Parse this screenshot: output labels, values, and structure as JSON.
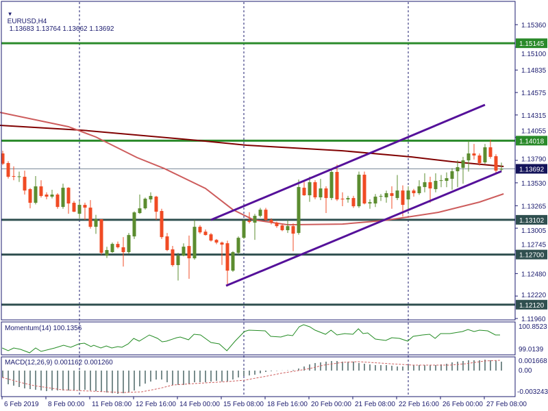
{
  "header": {
    "symbol": "EURUSD,H4",
    "ohlc_text": "1.13683 1.13764 1.13662 1.13692",
    "menu_icon": "triangle-down-icon"
  },
  "momentum": {
    "label": "Momentum(14) 100.1356",
    "axis_top": "100.8523",
    "axis_bottom": "99.0139"
  },
  "macd": {
    "label": "MACD(12,26,9) 0.001162 0.001260",
    "axis_top": "0.001668",
    "axis_zero": "0.00",
    "axis_bottom": "-0.003243"
  },
  "colors": {
    "bull": "#5b8c2f",
    "bear": "#f04b24",
    "resistance": "#2a8a2a",
    "support": "#2f4f4f",
    "channel": "#55119a",
    "ma_slow": "#800000",
    "ma_fast": "#cd5c5c",
    "momentum": "#228b22",
    "macd_hist": "#2f4f4f",
    "macd_signal": "#cd5c5c",
    "axis": "#1a1a6e",
    "price_line": "#7a8a9a"
  },
  "chart_data": {
    "type": "candlestick",
    "title": "EURUSD,H4",
    "y_ticks": [
      "1.15360",
      "1.15100",
      "1.14835",
      "1.14575",
      "1.14315",
      "1.14055",
      "1.13790",
      "1.13530",
      "1.13265",
      "1.13005",
      "1.12745",
      "1.12480",
      "1.12220",
      "1.11960"
    ],
    "ylim": [
      1.1196,
      1.1536
    ],
    "time_labels": [
      {
        "index": 0,
        "text": "6 Feb 2019"
      },
      {
        "index": 8,
        "text": "8 Feb 00:00"
      },
      {
        "index": 16,
        "text": "11 Feb 08:00"
      },
      {
        "index": 24,
        "text": "12 Feb 16:00"
      },
      {
        "index": 32,
        "text": "14 Feb 00:00"
      },
      {
        "index": 40,
        "text": "15 Feb 08:00"
      },
      {
        "index": 48,
        "text": "18 Feb 16:00"
      },
      {
        "index": 56,
        "text": "20 Feb 00:00"
      },
      {
        "index": 64,
        "text": "21 Feb 08:00"
      },
      {
        "index": 72,
        "text": "22 Feb 16:00"
      },
      {
        "index": 80,
        "text": "26 Feb 00:00"
      },
      {
        "index": 88,
        "text": "27 Feb 08:00"
      }
    ],
    "separators": [
      14,
      44,
      74
    ],
    "levels": [
      {
        "price": 1.15145,
        "text": "1.15145",
        "kind": "resistance"
      },
      {
        "price": 1.14018,
        "text": "1.14018",
        "kind": "resistance"
      },
      {
        "price": 1.13102,
        "text": "1.13102",
        "kind": "support"
      },
      {
        "price": 1.127,
        "text": "1.12700",
        "kind": "support"
      },
      {
        "price": 1.1212,
        "text": "1.12120",
        "kind": "support"
      }
    ],
    "current_price": {
      "price": 1.13692,
      "text": "1.13692"
    },
    "channel": [
      {
        "from": [
          38,
          1.13101
        ],
        "to": [
          88,
          1.14433
        ]
      },
      {
        "from": [
          40.75,
          1.12339
        ],
        "to": [
          91,
          1.13664
        ]
      }
    ],
    "ma_slow": [
      [
        -0.5,
        1.14195
      ],
      [
        14.5,
        1.14139
      ],
      [
        35.75,
        1.1402
      ],
      [
        44.5,
        1.13965
      ],
      [
        62,
        1.13901
      ],
      [
        74.5,
        1.1383
      ],
      [
        82,
        1.13775
      ],
      [
        91.4,
        1.13719
      ]
    ],
    "ma_fast": [
      [
        -0.5,
        1.14345
      ],
      [
        12,
        1.14179
      ],
      [
        17,
        1.1406
      ],
      [
        24.5,
        1.13822
      ],
      [
        29.5,
        1.13695
      ],
      [
        37,
        1.13465
      ],
      [
        42,
        1.13219
      ],
      [
        45.8,
        1.13101
      ],
      [
        52,
        1.13045
      ],
      [
        62,
        1.13053
      ],
      [
        69.5,
        1.13093
      ],
      [
        74.5,
        1.1314
      ],
      [
        79.5,
        1.13188
      ],
      [
        87,
        1.13307
      ],
      [
        91.4,
        1.13402
      ]
    ],
    "ohlc": [
      [
        1.1387,
        1.13901,
        1.13735,
        1.13751
      ],
      [
        1.13759,
        1.1378,
        1.1358,
        1.136
      ],
      [
        1.13608,
        1.1372,
        1.1356,
        1.136
      ],
      [
        1.136,
        1.1366,
        1.1354,
        1.13605
      ],
      [
        1.136,
        1.13671,
        1.13394,
        1.13441
      ],
      [
        1.13457,
        1.1347,
        1.13235,
        1.13299
      ],
      [
        1.13299,
        1.13608,
        1.1328,
        1.13489
      ],
      [
        1.13489,
        1.1356,
        1.1336,
        1.13378
      ],
      [
        1.13394,
        1.1342,
        1.1334,
        1.1337
      ],
      [
        1.1337,
        1.1345,
        1.1335,
        1.13394
      ],
      [
        1.13394,
        1.1341,
        1.1323,
        1.13251
      ],
      [
        1.13251,
        1.1352,
        1.1323,
        1.13473
      ],
      [
        1.13473,
        1.1348,
        1.13172,
        1.13291
      ],
      [
        1.13299,
        1.1332,
        1.1319,
        1.13196
      ],
      [
        1.13172,
        1.1332,
        1.13116,
        1.13275
      ],
      [
        1.13275,
        1.133,
        1.131,
        1.13243
      ],
      [
        1.13243,
        1.1333,
        1.13,
        1.13021
      ],
      [
        1.13021,
        1.1316,
        1.1294,
        1.13108
      ],
      [
        1.13108,
        1.1311,
        1.127,
        1.1272
      ],
      [
        1.12688,
        1.1279,
        1.1266,
        1.12752
      ],
      [
        1.12728,
        1.1284,
        1.1272,
        1.12823
      ],
      [
        1.12823,
        1.1285,
        1.1277,
        1.12784
      ],
      [
        1.12784,
        1.12902,
        1.12561,
        1.12728
      ],
      [
        1.12728,
        1.1295,
        1.1271,
        1.12926
      ],
      [
        1.1291,
        1.132,
        1.1288,
        1.13188
      ],
      [
        1.1318,
        1.13394,
        1.1317,
        1.13235
      ],
      [
        1.13235,
        1.1336,
        1.1322,
        1.13346
      ],
      [
        1.13338,
        1.1342,
        1.133,
        1.13378
      ],
      [
        1.1337,
        1.1338,
        1.131,
        1.13196
      ],
      [
        1.13204,
        1.1323,
        1.1288,
        1.12902
      ],
      [
        1.1291,
        1.1295,
        1.1274,
        1.12752
      ],
      [
        1.1276,
        1.128,
        1.1256,
        1.12578
      ],
      [
        1.12578,
        1.1272,
        1.124,
        1.12688
      ],
      [
        1.12688,
        1.1283,
        1.1268,
        1.12791
      ],
      [
        1.12799,
        1.1292,
        1.1242,
        1.12657
      ],
      [
        1.12657,
        1.131,
        1.1264,
        1.13021
      ],
      [
        1.13021,
        1.1304,
        1.1294,
        1.12957
      ],
      [
        1.12965,
        1.1299,
        1.1292,
        1.12926
      ],
      [
        1.12934,
        1.1295,
        1.1285,
        1.12862
      ],
      [
        1.1287,
        1.1288,
        1.1282,
        1.12839
      ],
      [
        1.12839,
        1.1285,
        1.1258,
        1.12815
      ],
      [
        1.12831,
        1.1286,
        1.12331,
        1.12514
      ],
      [
        1.12514,
        1.1274,
        1.125,
        1.12728
      ],
      [
        1.1272,
        1.1291,
        1.127,
        1.12894
      ],
      [
        1.12894,
        1.1311,
        1.1288,
        1.13093
      ],
      [
        1.13093,
        1.1319,
        1.1306,
        1.13077
      ],
      [
        1.13069,
        1.1317,
        1.1287,
        1.13148
      ],
      [
        1.13148,
        1.1324,
        1.1313,
        1.13219
      ],
      [
        1.13219,
        1.1324,
        1.1309,
        1.13101
      ],
      [
        1.13101,
        1.1312,
        1.1305,
        1.13069
      ],
      [
        1.13069,
        1.1308,
        1.1301,
        1.13029
      ],
      [
        1.13037,
        1.1305,
        1.1297,
        1.12982
      ],
      [
        1.12982,
        1.131,
        1.1295,
        1.13029
      ],
      [
        1.13029,
        1.1306,
        1.1274,
        1.12942
      ],
      [
        1.1295,
        1.13568,
        1.1293,
        1.13481
      ],
      [
        1.13473,
        1.1356,
        1.1338,
        1.13386
      ],
      [
        1.13386,
        1.136,
        1.1331,
        1.13537
      ],
      [
        1.13537,
        1.1356,
        1.1334,
        1.13362
      ],
      [
        1.13362,
        1.13576,
        1.1333,
        1.13465
      ],
      [
        1.13465,
        1.1349,
        1.1318,
        1.13354
      ],
      [
        1.13354,
        1.13695,
        1.1333,
        1.13656
      ],
      [
        1.13656,
        1.1374,
        1.1332,
        1.13338
      ],
      [
        1.13346,
        1.1342,
        1.1326,
        1.13338
      ],
      [
        1.13338,
        1.1338,
        1.133,
        1.13354
      ],
      [
        1.13354,
        1.1338,
        1.1324,
        1.13259
      ],
      [
        1.13259,
        1.1366,
        1.1324,
        1.13624
      ],
      [
        1.13624,
        1.1366,
        1.1328,
        1.13291
      ],
      [
        1.13291,
        1.1334,
        1.1323,
        1.13306
      ],
      [
        1.13291,
        1.134,
        1.1325,
        1.1337
      ],
      [
        1.1337,
        1.134,
        1.1332,
        1.13378
      ],
      [
        1.13362,
        1.1344,
        1.133,
        1.1341
      ],
      [
        1.1341,
        1.1349,
        1.1323,
        1.13378
      ],
      [
        1.13354,
        1.1362,
        1.1333,
        1.13441
      ],
      [
        1.13441,
        1.135,
        1.1314,
        1.13275
      ],
      [
        1.13338,
        1.1349,
        1.132,
        1.13441
      ],
      [
        1.13441,
        1.1346,
        1.1337,
        1.1341
      ],
      [
        1.1341,
        1.1356,
        1.1339,
        1.13489
      ],
      [
        1.13481,
        1.1364,
        1.1342,
        1.13537
      ],
      [
        1.13537,
        1.136,
        1.133,
        1.13465
      ],
      [
        1.13457,
        1.1364,
        1.1342,
        1.13553
      ],
      [
        1.13553,
        1.1362,
        1.1348,
        1.1356
      ],
      [
        1.13553,
        1.1365,
        1.1348,
        1.13584
      ],
      [
        1.13576,
        1.137,
        1.1345,
        1.13664
      ],
      [
        1.13664,
        1.1379,
        1.1348,
        1.13711
      ],
      [
        1.13703,
        1.1383,
        1.1352,
        1.1379
      ],
      [
        1.1379,
        1.14018,
        1.1366,
        1.1387
      ],
      [
        1.1387,
        1.1398,
        1.138,
        1.13846
      ],
      [
        1.13846,
        1.1387,
        1.1373,
        1.13759
      ],
      [
        1.13767,
        1.1398,
        1.1375,
        1.13941
      ],
      [
        1.13941,
        1.1403,
        1.1381,
        1.1383
      ],
      [
        1.13838,
        1.1386,
        1.1364,
        1.13671
      ],
      [
        1.13683,
        1.13764,
        1.13662,
        1.13692
      ]
    ],
    "momentum_series": [
      [
        -0.1,
        99.129
      ],
      [
        1,
        98.899
      ],
      [
        2,
        99.129
      ],
      [
        3.25,
        99.014
      ],
      [
        4.9,
        98.727
      ],
      [
        6,
        99.129
      ],
      [
        7,
        98.842
      ],
      [
        9.5,
        99.129
      ],
      [
        11.1,
        99.359
      ],
      [
        12.4,
        99.186
      ],
      [
        13.9,
        99.474
      ],
      [
        14.9,
        99.531
      ],
      [
        16.1,
        99.244
      ],
      [
        16.6,
        99.359
      ],
      [
        17.9,
        99.129
      ],
      [
        18.9,
        99.301
      ],
      [
        19.9,
        99.129
      ],
      [
        21,
        99.244
      ],
      [
        21.75,
        99.186
      ],
      [
        22.9,
        99.474
      ],
      [
        23.9,
        99.933
      ],
      [
        24.9,
        99.703
      ],
      [
        26.75,
        100.22
      ],
      [
        28.25,
        99.933
      ],
      [
        29.1,
        99.646
      ],
      [
        29.9,
        99.703
      ],
      [
        31.75,
        99.991
      ],
      [
        32.4,
        100.048
      ],
      [
        33.9,
        99.818
      ],
      [
        34.9,
        100.278
      ],
      [
        36.1,
        100.22
      ],
      [
        38,
        99.588
      ],
      [
        39.5,
        99.474
      ],
      [
        40.9,
        98.899
      ],
      [
        42.4,
        99.703
      ],
      [
        44.1,
        100.508
      ],
      [
        44.9,
        100.622
      ],
      [
        47.9,
        100.565
      ],
      [
        48.9,
        100.106
      ],
      [
        50.75,
        100.048
      ],
      [
        52,
        100.22
      ],
      [
        52.9,
        100.163
      ],
      [
        54.1,
        100.91
      ],
      [
        54.9,
        101.082
      ],
      [
        56,
        100.91
      ],
      [
        57,
        100.623
      ],
      [
        58.9,
        100.278
      ],
      [
        59.9,
        100.623
      ],
      [
        61,
        100.22
      ],
      [
        62.4,
        100.335
      ],
      [
        63.9,
        100.278
      ],
      [
        64.9,
        100.737
      ],
      [
        65.75,
        100.335
      ],
      [
        66.6,
        100.393
      ],
      [
        68,
        99.876
      ],
      [
        69.9,
        99.761
      ],
      [
        71,
        99.991
      ],
      [
        72.4,
        99.933
      ],
      [
        73.9,
        99.703
      ],
      [
        74.9,
        100.106
      ],
      [
        76.6,
        100.22
      ],
      [
        77.9,
        100.278
      ],
      [
        78.9,
        99.933
      ],
      [
        79.9,
        100.335
      ],
      [
        81.6,
        100.335
      ],
      [
        83.9,
        100.508
      ],
      [
        84.9,
        100.68
      ],
      [
        86,
        100.508
      ],
      [
        87,
        100.622
      ],
      [
        88.5,
        100.565
      ],
      [
        89.9,
        100.22
      ],
      [
        90.75,
        100.22
      ]
    ],
    "macd_histogram": [
      -0.00115,
      -0.0023,
      -0.00253,
      -0.00276,
      -0.00299,
      -0.00311,
      -0.00322,
      -0.00334,
      -0.00345,
      -0.00334,
      -0.00334,
      -0.00334,
      -0.00334,
      -0.00334,
      -0.00334,
      -0.00322,
      -0.00334,
      -0.00345,
      -0.00357,
      -0.00368,
      -0.0038,
      -0.00391,
      -0.0038,
      -0.00368,
      -0.00334,
      -0.00265,
      -0.00219,
      -0.00184,
      -0.0015,
      -0.0015,
      -0.00196,
      -0.00242,
      -0.00242,
      -0.00242,
      -0.00219,
      -0.00196,
      -0.00196,
      -0.00196,
      -0.00184,
      -0.00173,
      -0.00184,
      -0.00184,
      -0.0015,
      -0.00115,
      -0.00092,
      -0.00081,
      -0.00069,
      -0.00046,
      -0.00023,
      -0.0001,
      -5e-05,
      2e-05,
      5e-05,
      0.0001,
      0.00035,
      0.00069,
      0.00104,
      0.00127,
      0.00138,
      0.0015,
      0.00161,
      0.00161,
      0.0015,
      0.0015,
      0.0015,
      0.00127,
      0.00115,
      0.00104,
      0.00092,
      0.00092,
      0.00092,
      0.00081,
      0.00069,
      0.00069,
      0.00092,
      0.00092,
      0.00092,
      0.00092,
      0.00092,
      0.00092,
      0.00104,
      0.00115,
      0.00138,
      0.0015,
      0.00161,
      0.00173,
      0.00173,
      0.00173,
      0.00184,
      0.00173,
      0.00173,
      0.0015
    ],
    "macd_signal": [
      [
        -0.1,
        -0.00115
      ],
      [
        3.6,
        -0.00207
      ],
      [
        5.75,
        -0.00253
      ],
      [
        10.75,
        -0.00322
      ],
      [
        16.1,
        -0.00345
      ],
      [
        22,
        -0.00368
      ],
      [
        25.4,
        -0.00357
      ],
      [
        28.6,
        -0.00299
      ],
      [
        31.1,
        -0.00242
      ],
      [
        34.9,
        -0.00219
      ],
      [
        41.1,
        -0.00184
      ],
      [
        44.1,
        -0.00161
      ],
      [
        48.25,
        -0.00092
      ],
      [
        50.75,
        -0.00046
      ],
      [
        53.9,
        0
      ],
      [
        56,
        0.00035
      ],
      [
        58.6,
        0.00092
      ],
      [
        62,
        0.00138
      ],
      [
        64.9,
        0.0015
      ],
      [
        70.75,
        0.00115
      ],
      [
        74.9,
        0.00092
      ],
      [
        81.6,
        0.00092
      ],
      [
        84.5,
        0.00115
      ],
      [
        87.9,
        0.00161
      ],
      [
        90.75,
        0.00173
      ]
    ]
  }
}
